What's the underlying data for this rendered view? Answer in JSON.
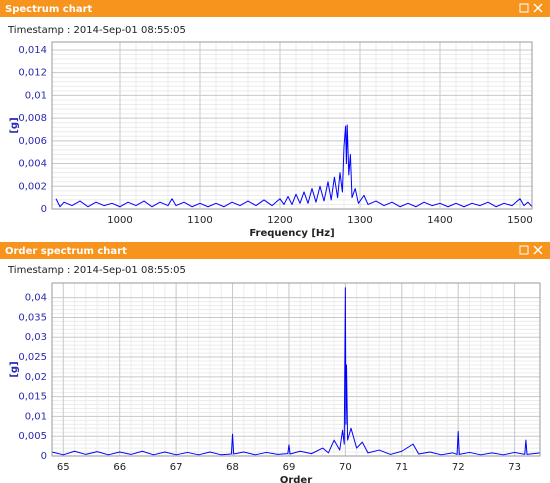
{
  "chart_data": [
    {
      "type": "line",
      "title": "Spectrum chart",
      "subtitle": "Timestamp : 2014-Sep-01 08:55:05",
      "x_label": "Frequency [Hz]",
      "y_label": "[g]",
      "color": "#0000ff",
      "grid": true,
      "minor_divisions": 5,
      "xlim": [
        915,
        1515
      ],
      "ylim": [
        0,
        0.0147
      ],
      "xticks": [
        1000,
        1100,
        1200,
        1300,
        1400,
        1500
      ],
      "yticks": [
        0,
        {
          "value": 0.002,
          "label": "0,002"
        },
        {
          "value": 0.004,
          "label": "0,004"
        },
        {
          "value": 0.006,
          "label": "0,006"
        },
        {
          "value": 0.008,
          "label": "0,008"
        },
        {
          "value": 0.01,
          "label": "0,01"
        },
        {
          "value": 0.012,
          "label": "0,012"
        },
        {
          "value": 0.014,
          "label": "0,014"
        }
      ],
      "x": [
        920,
        925,
        930,
        940,
        950,
        960,
        970,
        980,
        990,
        1000,
        1010,
        1020,
        1030,
        1040,
        1050,
        1060,
        1065,
        1070,
        1080,
        1090,
        1100,
        1110,
        1120,
        1130,
        1140,
        1150,
        1160,
        1170,
        1180,
        1190,
        1200,
        1205,
        1210,
        1215,
        1220,
        1225,
        1230,
        1235,
        1240,
        1245,
        1250,
        1255,
        1260,
        1264,
        1268,
        1272,
        1275,
        1278,
        1280,
        1282,
        1283,
        1284,
        1286,
        1288,
        1290,
        1294,
        1298,
        1305,
        1310,
        1320,
        1330,
        1340,
        1350,
        1360,
        1370,
        1380,
        1390,
        1400,
        1410,
        1420,
        1430,
        1440,
        1450,
        1460,
        1470,
        1480,
        1490,
        1500,
        1505,
        1510,
        1515
      ],
      "values": [
        0.0009,
        0.0002,
        0.0006,
        0.0003,
        0.0007,
        0.0002,
        0.0006,
        0.0003,
        0.0005,
        0.0002,
        0.0006,
        0.0003,
        0.0007,
        0.0002,
        0.0006,
        0.0003,
        0.0009,
        0.0003,
        0.0006,
        0.0002,
        0.0005,
        0.0002,
        0.0005,
        0.0002,
        0.0006,
        0.0003,
        0.0007,
        0.0003,
        0.0008,
        0.0003,
        0.0009,
        0.0004,
        0.0011,
        0.0004,
        0.0013,
        0.0005,
        0.0015,
        0.0005,
        0.0018,
        0.0006,
        0.002,
        0.0007,
        0.0024,
        0.0008,
        0.0028,
        0.001,
        0.0032,
        0.0015,
        0.0055,
        0.0073,
        0.004,
        0.0074,
        0.003,
        0.0048,
        0.001,
        0.0018,
        0.0005,
        0.0012,
        0.0004,
        0.0007,
        0.0003,
        0.0006,
        0.0002,
        0.0005,
        0.0002,
        0.0006,
        0.0003,
        0.0005,
        0.0002,
        0.0005,
        0.0002,
        0.0005,
        0.0003,
        0.0006,
        0.0002,
        0.0005,
        0.0003,
        0.0009,
        0.0003,
        0.0006,
        0.0002
      ]
    },
    {
      "type": "line",
      "title": "Order spectrum chart",
      "subtitle": "Timestamp : 2014-Sep-01 08:55:05",
      "x_label": "Order",
      "y_label": "[g]",
      "color": "#0000ff",
      "grid": true,
      "minor_divisions": 5,
      "xlim": [
        64.8,
        73.45
      ],
      "ylim": [
        0,
        0.0437
      ],
      "xticks": [
        65,
        66,
        67,
        68,
        69,
        70,
        71,
        72,
        73
      ],
      "yticks": [
        0,
        {
          "value": 0.005,
          "label": "0,005"
        },
        {
          "value": 0.01,
          "label": "0,01"
        },
        {
          "value": 0.015,
          "label": "0,015"
        },
        {
          "value": 0.02,
          "label": "0,02"
        },
        {
          "value": 0.025,
          "label": "0,025"
        },
        {
          "value": 0.03,
          "label": "0,03"
        },
        {
          "value": 0.035,
          "label": "0,035"
        },
        {
          "value": 0.04,
          "label": "0,04"
        }
      ],
      "x": [
        64.8,
        65.0,
        65.2,
        65.4,
        65.6,
        65.8,
        66.0,
        66.2,
        66.4,
        66.6,
        66.8,
        67.0,
        67.2,
        67.4,
        67.6,
        67.8,
        67.98,
        68.0,
        68.02,
        68.2,
        68.4,
        68.6,
        68.8,
        68.98,
        69.0,
        69.02,
        69.2,
        69.4,
        69.6,
        69.7,
        69.8,
        69.9,
        69.95,
        69.98,
        70.0,
        70.01,
        70.02,
        70.04,
        70.1,
        70.2,
        70.3,
        70.4,
        70.6,
        70.8,
        71.0,
        71.2,
        71.3,
        71.5,
        71.7,
        71.9,
        71.98,
        72.0,
        72.02,
        72.2,
        72.4,
        72.6,
        72.8,
        73.0,
        73.18,
        73.2,
        73.22,
        73.45
      ],
      "values": [
        0.001,
        0.0003,
        0.0012,
        0.0004,
        0.0011,
        0.0003,
        0.001,
        0.0004,
        0.0012,
        0.0003,
        0.001,
        0.0003,
        0.0009,
        0.0003,
        0.001,
        0.0003,
        0.0005,
        0.0055,
        0.0005,
        0.001,
        0.0003,
        0.0009,
        0.0004,
        0.0006,
        0.0028,
        0.0005,
        0.0012,
        0.0006,
        0.002,
        0.0008,
        0.004,
        0.0015,
        0.0065,
        0.003,
        0.0425,
        0.008,
        0.023,
        0.004,
        0.007,
        0.002,
        0.0035,
        0.0008,
        0.0015,
        0.0004,
        0.0012,
        0.003,
        0.0005,
        0.001,
        0.0003,
        0.0008,
        0.0004,
        0.0062,
        0.0004,
        0.0009,
        0.0003,
        0.0008,
        0.0003,
        0.0009,
        0.0004,
        0.004,
        0.0004,
        0.0008
      ]
    }
  ]
}
